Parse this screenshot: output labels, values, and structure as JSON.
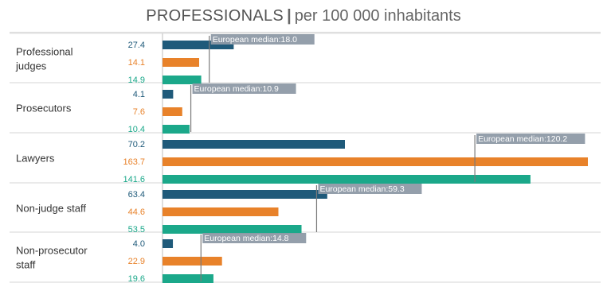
{
  "title": {
    "main": "PROFESSIONALS",
    "separator": "|",
    "sub": "per 100 000 inhabitants"
  },
  "chart_data": {
    "type": "bar",
    "orientation": "horizontal",
    "categories": [
      "Professional judges",
      "Prosecutors",
      "Lawyers",
      "Non-judge staff",
      "Non-prosecutor staff"
    ],
    "category_lines": [
      [
        "Professional",
        "judges"
      ],
      [
        "Prosecutors"
      ],
      [
        "Lawyers"
      ],
      [
        "Non-judge staff"
      ],
      [
        "Non-prosecutor",
        "staff"
      ]
    ],
    "series": [
      {
        "color": "#1f5a7a",
        "values": [
          27.4,
          4.1,
          70.2,
          63.4,
          4.0
        ]
      },
      {
        "color": "#e8822a",
        "values": [
          14.1,
          7.6,
          163.7,
          44.6,
          22.9
        ]
      },
      {
        "color": "#1ba88a",
        "values": [
          14.9,
          10.4,
          141.6,
          53.5,
          19.6
        ]
      }
    ],
    "medians": [
      18.0,
      10.9,
      120.2,
      59.3,
      14.8
    ],
    "median_label_prefix": "European median:",
    "median_labels": [
      "European median:18.0",
      "European median:10.9",
      "European median:120.2",
      "European median:59.3",
      "European median:14.8"
    ],
    "value_labels": [
      [
        "27.4",
        "4.1",
        "70.2",
        "63.4",
        "4.0"
      ],
      [
        "14.1",
        "7.6",
        "163.7",
        "44.6",
        "22.9"
      ],
      [
        "14.9",
        "10.4",
        "141.6",
        "53.5",
        "19.6"
      ]
    ],
    "xlim": [
      0,
      163.7
    ],
    "grid": false,
    "legend": "none"
  }
}
